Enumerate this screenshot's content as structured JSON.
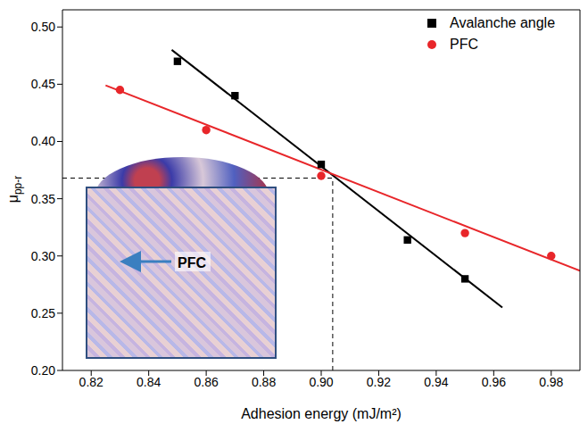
{
  "chart_data": {
    "type": "scatter",
    "x_label": "Adhesion energy (mJ/m²)",
    "y_label": "μpp-r",
    "xlim": [
      0.81,
      0.99
    ],
    "xticks": [
      0.82,
      0.84,
      0.86,
      0.88,
      {
        "value": 0.9,
        "label": "0.90"
      },
      0.92,
      0.94,
      0.96,
      0.98
    ],
    "ylim": [
      0.2,
      0.515
    ],
    "yticks": [
      {
        "value": 0.2,
        "label": "0.20"
      },
      0.25,
      {
        "value": 0.3,
        "label": "0.30"
      },
      0.35,
      {
        "value": 0.4,
        "label": "0.40"
      },
      0.45,
      {
        "value": 0.5,
        "label": "0.50"
      }
    ],
    "legend": "upper right",
    "grid": false,
    "series": [
      {
        "name": "Avalanche angle",
        "color": "#000000",
        "marker": "square",
        "x": [
          0.85,
          0.87,
          0.9,
          0.93,
          0.95
        ],
        "values": [
          0.47,
          0.44,
          0.38,
          0.314,
          0.28
        ],
        "fit": {
          "x": [
            0.848,
            0.963
          ],
          "values": [
            0.48,
            0.255
          ]
        }
      },
      {
        "name": "PFC",
        "color": "#e8262a",
        "marker": "circle",
        "x": [
          0.83,
          0.86,
          0.9,
          0.95,
          0.98
        ],
        "values": [
          0.445,
          0.41,
          0.37,
          0.32,
          0.3
        ],
        "fit": {
          "x": [
            0.825,
            0.99
          ],
          "values": [
            0.449,
            0.287
          ]
        }
      }
    ],
    "crosshair": {
      "x": 0.904,
      "y": 0.368,
      "line_style": "dashed"
    },
    "annotation": "PFC"
  }
}
